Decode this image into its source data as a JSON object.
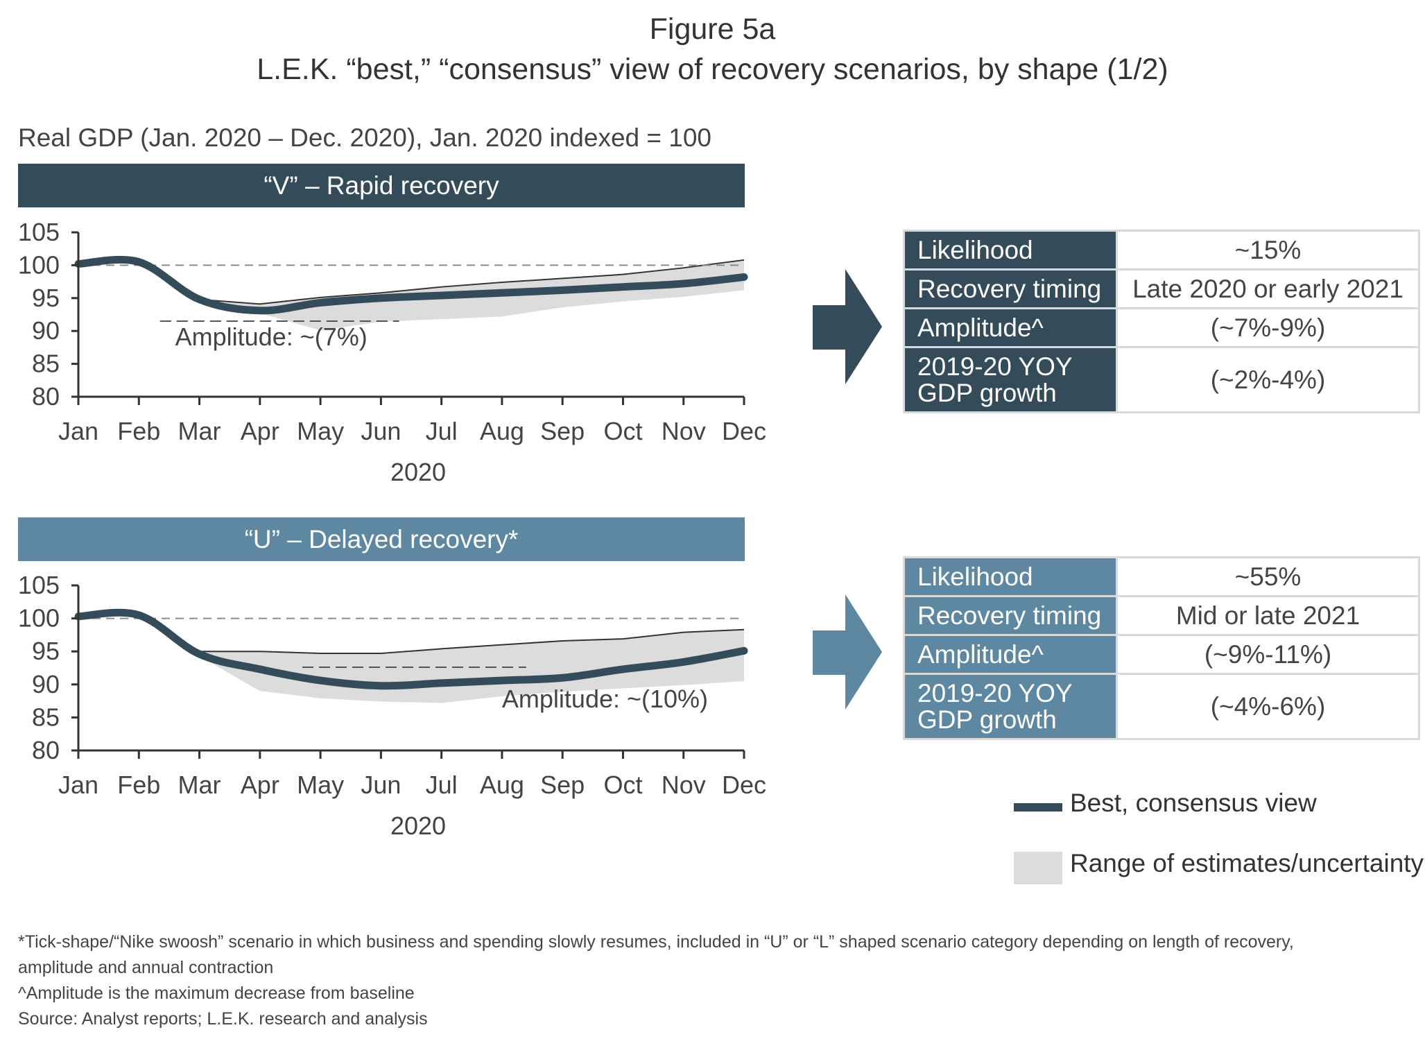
{
  "header": {
    "title": "Figure 5a",
    "subtitle": "L.E.K. “best,” “consensus” view of recovery scenarios, by shape (1/2)",
    "units": "Real GDP (Jan. 2020 – Dec. 2020), Jan. 2020 indexed = 100"
  },
  "colors": {
    "v_dark": "#344b5a",
    "u_blue": "#5e88a2",
    "range_grey": "#dcdcdc"
  },
  "legend": {
    "line_label": "Best, consensus view",
    "range_label": "Range of estimates/uncertainty"
  },
  "chart_data": [
    {
      "type": "line",
      "panel_title": "“V” – Rapid recovery",
      "amplitude_label": "Amplitude: ~(7%)",
      "categories": [
        "Jan",
        "Feb",
        "Mar",
        "Apr",
        "May",
        "Jun",
        "Jul",
        "Aug",
        "Sep",
        "Oct",
        "Nov",
        "Dec"
      ],
      "xlabel": "2020",
      "ylim": [
        80,
        105
      ],
      "yticks": [
        105,
        100,
        95,
        90,
        85,
        80
      ],
      "baseline": 100,
      "amplitude_ref": 91.5,
      "series": [
        {
          "name": "Best, consensus view",
          "values": [
            100.2,
            100.5,
            94.8,
            93.1,
            94.3,
            95.0,
            95.4,
            95.8,
            96.2,
            96.7,
            97.2,
            98.2
          ]
        }
      ],
      "range_upper": [
        100.2,
        100.5,
        94.8,
        94.1,
        95.1,
        95.8,
        96.7,
        97.4,
        98.0,
        98.6,
        99.6,
        100.8
      ],
      "range_lower": [
        100.2,
        100.5,
        94.8,
        92.7,
        90.1,
        91.4,
        91.8,
        92.2,
        93.6,
        94.5,
        95.2,
        96.2
      ],
      "info": [
        {
          "label": "Likelihood",
          "value": "~15%"
        },
        {
          "label": "Recovery timing",
          "value": "Late 2020 or early 2021"
        },
        {
          "label": "Amplitude^",
          "value": "(~7%-9%)"
        },
        {
          "label": "2019-20 YOY GDP growth",
          "value": "(~2%-4%)"
        }
      ]
    },
    {
      "type": "line",
      "panel_title": "“U” – Delayed recovery*",
      "amplitude_label": "Amplitude: ~(10%)",
      "categories": [
        "Jan",
        "Feb",
        "Mar",
        "Apr",
        "May",
        "Jun",
        "Jul",
        "Aug",
        "Sep",
        "Oct",
        "Nov",
        "Dec"
      ],
      "xlabel": "2020",
      "ylim": [
        80,
        105
      ],
      "yticks": [
        105,
        100,
        95,
        90,
        85,
        80
      ],
      "baseline": 100,
      "amplitude_ref": 92.6,
      "series": [
        {
          "name": "Best, consensus view",
          "values": [
            100.3,
            100.5,
            94.6,
            92.3,
            90.6,
            89.8,
            90.2,
            90.6,
            91.0,
            92.3,
            93.4,
            95.1
          ]
        }
      ],
      "range_upper": [
        100.3,
        100.5,
        95.0,
        95.0,
        94.7,
        94.7,
        95.4,
        96.0,
        96.6,
        96.9,
        97.9,
        98.3
      ],
      "range_lower": [
        100.3,
        100.5,
        94.3,
        89.0,
        87.9,
        87.4,
        87.2,
        88.2,
        88.9,
        89.4,
        89.9,
        90.5
      ],
      "info": [
        {
          "label": "Likelihood",
          "value": "~55%"
        },
        {
          "label": "Recovery timing",
          "value": "Mid or late 2021"
        },
        {
          "label": "Amplitude^",
          "value": "(~9%-11%)"
        },
        {
          "label": "2019-20 YOY GDP growth",
          "value": "(~4%-6%)"
        }
      ]
    }
  ],
  "notes": {
    "line1": "*Tick-shape/“Nike swoosh” scenario in which business and spending slowly resumes, included in “U” or “L” shaped scenario category depending on length of recovery,",
    "line2": "amplitude and annual contraction",
    "line3": "^Amplitude is the maximum decrease from baseline",
    "line4": "Source: Analyst reports; L.E.K. research and analysis"
  }
}
